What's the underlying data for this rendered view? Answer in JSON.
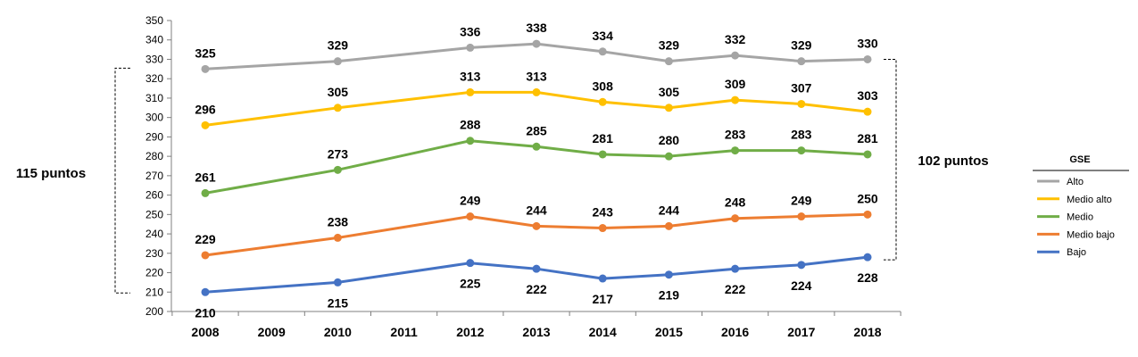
{
  "chart_data": {
    "type": "line",
    "x": [
      "2008",
      "2009",
      "2010",
      "2011",
      "2012",
      "2013",
      "2014",
      "2015",
      "2016",
      "2017",
      "2018"
    ],
    "ylim": [
      200,
      350
    ],
    "yticks": [
      "200",
      "210",
      "220",
      "230",
      "240",
      "250",
      "260",
      "270",
      "280",
      "290",
      "300",
      "310",
      "320",
      "330",
      "340",
      "350"
    ],
    "grid": false,
    "legend": {
      "title": "GSE",
      "placement": "right"
    },
    "series": [
      {
        "name": "Alto",
        "color": "#A5A5A5",
        "label_position": "above",
        "values": [
          325,
          null,
          329,
          null,
          336,
          338,
          334,
          329,
          332,
          329,
          330
        ]
      },
      {
        "name": "Medio alto",
        "color": "#FFC000",
        "label_position": "above",
        "values": [
          296,
          null,
          305,
          null,
          313,
          313,
          308,
          305,
          309,
          307,
          303
        ]
      },
      {
        "name": "Medio",
        "color": "#70AD47",
        "label_position": "above",
        "values": [
          261,
          null,
          273,
          null,
          288,
          285,
          281,
          280,
          283,
          283,
          281
        ]
      },
      {
        "name": "Medio bajo",
        "color": "#ED7D31",
        "label_position": "above",
        "values": [
          229,
          null,
          238,
          null,
          249,
          244,
          243,
          244,
          248,
          249,
          250
        ]
      },
      {
        "name": "Bajo",
        "color": "#4472C4",
        "label_position": "below",
        "values": [
          210,
          null,
          215,
          null,
          225,
          222,
          217,
          219,
          222,
          224,
          228
        ]
      }
    ],
    "annotations": {
      "left_gap": {
        "text": "115 puntos",
        "year": "2008",
        "from": 210,
        "to": 325
      },
      "right_gap": {
        "text": "102 puntos",
        "year": "2018",
        "from": 228,
        "to": 330
      }
    }
  }
}
